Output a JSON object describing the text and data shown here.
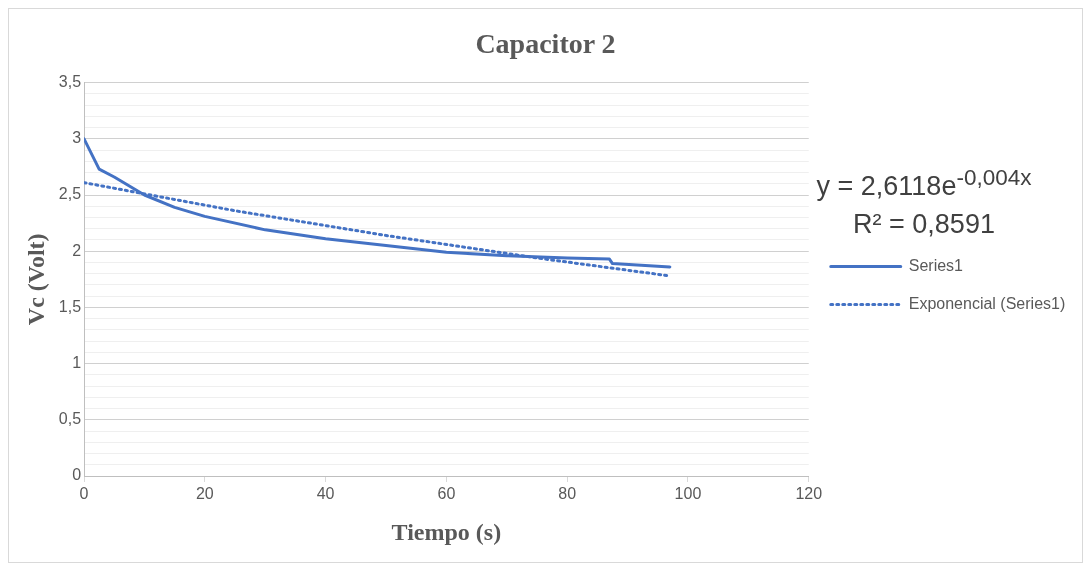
{
  "chart_data": {
    "type": "line",
    "title": "Capacitor 2",
    "xlabel": "Tiempo (s)",
    "ylabel": "Vc (Volt)",
    "xlim": [
      0,
      120
    ],
    "xticks": [
      0,
      20,
      40,
      60,
      80,
      100,
      120
    ],
    "ylim": [
      0,
      3.5
    ],
    "yticks": [
      0,
      {
        "value": 0.1,
        "label": null
      },
      {
        "value": 0.2,
        "label": null
      },
      {
        "value": 0.3,
        "label": null
      },
      {
        "value": 0.4,
        "label": null
      },
      {
        "value": 0.5,
        "label": "0,5"
      },
      {
        "value": 0.6,
        "label": null
      },
      {
        "value": 0.7,
        "label": null
      },
      {
        "value": 0.8,
        "label": null
      },
      {
        "value": 0.9,
        "label": null
      },
      1,
      {
        "value": 1.1,
        "label": null
      },
      {
        "value": 1.2,
        "label": null
      },
      {
        "value": 1.3,
        "label": null
      },
      {
        "value": 1.4,
        "label": null
      },
      {
        "value": 1.5,
        "label": "1,5"
      },
      {
        "value": 1.6,
        "label": null
      },
      {
        "value": 1.7,
        "label": null
      },
      {
        "value": 1.8,
        "label": null
      },
      {
        "value": 1.9,
        "label": null
      },
      2,
      {
        "value": 2.1,
        "label": null
      },
      {
        "value": 2.2,
        "label": null
      },
      {
        "value": 2.3,
        "label": null
      },
      {
        "value": 2.4,
        "label": null
      },
      {
        "value": 2.5,
        "label": "2,5"
      },
      {
        "value": 2.6,
        "label": null
      },
      {
        "value": 2.7,
        "label": null
      },
      {
        "value": 2.8,
        "label": null
      },
      {
        "value": 2.9,
        "label": null
      },
      3,
      {
        "value": 3.1,
        "label": null
      },
      {
        "value": 3.2,
        "label": null
      },
      {
        "value": 3.3,
        "label": null
      },
      {
        "value": 3.4,
        "label": null
      },
      {
        "value": 3.5,
        "label": "3,5"
      }
    ],
    "grid": "y",
    "legend": "right",
    "marker": "none",
    "annotations": [
      "y = 2,6118e$^{-0,004x}$",
      "R² = 0,8591"
    ],
    "series": [
      {
        "name": "Series1",
        "color": "#4472c4",
        "line_style": "solid",
        "x": [
          0,
          2.5,
          5,
          10,
          15,
          20,
          30,
          40,
          50,
          60,
          70,
          80,
          87,
          87.5,
          97
        ],
        "values": [
          3.0,
          2.73,
          2.66,
          2.5,
          2.39,
          2.31,
          2.19,
          2.11,
          2.05,
          1.99,
          1.96,
          1.94,
          1.93,
          1.89,
          1.86
        ]
      },
      {
        "name": "Exponencial (Series1)",
        "color": "#4472c4",
        "line_style": "dotted",
        "x": [
          0,
          25,
          50,
          75,
          97
        ],
        "values": [
          2.61,
          2.36,
          2.14,
          1.94,
          1.78
        ]
      }
    ]
  }
}
